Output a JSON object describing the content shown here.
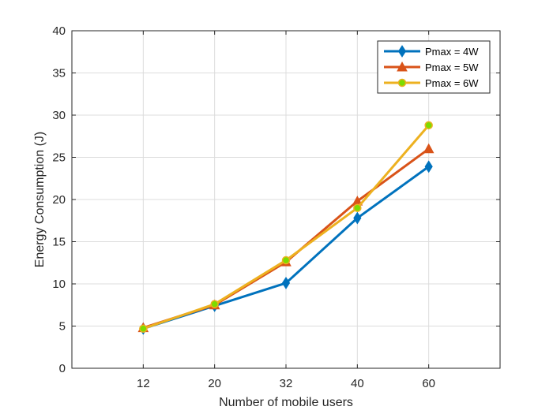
{
  "chart_data": {
    "type": "line",
    "title": "",
    "xlabel": "Number of mobile users",
    "ylabel": "Energy Consumption (J)",
    "categories": [
      "12",
      "20",
      "32",
      "40",
      "60"
    ],
    "ylim": [
      0,
      40
    ],
    "yticks": [
      "0",
      "5",
      "10",
      "15",
      "20",
      "25",
      "30",
      "35",
      "40"
    ],
    "grid": true,
    "legend_position": "top-right",
    "series": [
      {
        "name": "Pmax = 4W",
        "color": "#0072BD",
        "marker": "diamond",
        "values": [
          4.7,
          7.4,
          10.1,
          17.8,
          23.9
        ]
      },
      {
        "name": "Pmax = 5W",
        "color": "#D95319",
        "marker": "triangle",
        "values": [
          4.8,
          7.5,
          12.6,
          19.8,
          26.0
        ]
      },
      {
        "name": "Pmax = 6W",
        "color": "#EDB120",
        "marker": "circle",
        "marker_fill": "#7CDC00",
        "values": [
          4.7,
          7.6,
          12.8,
          19.0,
          28.8
        ]
      }
    ]
  }
}
